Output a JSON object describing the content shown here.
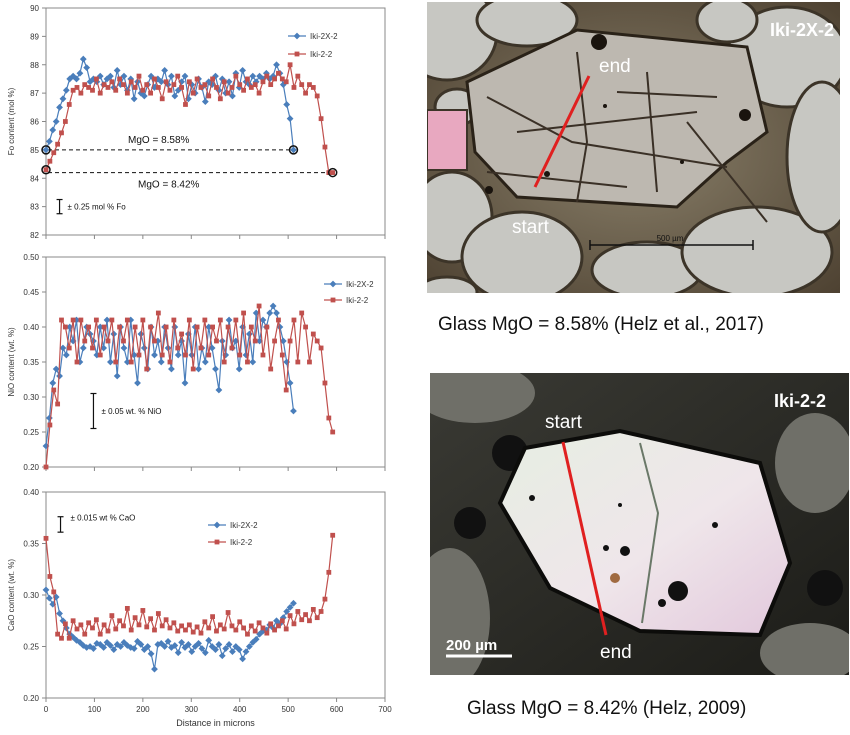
{
  "colors": {
    "series1": "#4a7ebb",
    "series2": "#c0504d",
    "track": "#e02020"
  },
  "chart_data": [
    {
      "type": "line",
      "ylabel": "Fo content (mol %)",
      "xlim": [
        0,
        700
      ],
      "ylim": [
        82,
        90
      ],
      "yticks": [
        82,
        83,
        84,
        85,
        86,
        87,
        88,
        89,
        90
      ],
      "xticks": [
        0,
        100,
        200,
        300,
        400,
        500,
        600,
        700
      ],
      "show_xtick_labels": false,
      "legend": "right",
      "series": [
        {
          "name": "Iki-2X-2",
          "x": [
            0,
            7,
            14,
            21,
            28,
            35,
            42,
            49,
            56,
            63,
            70,
            77,
            84,
            91,
            98,
            105,
            112,
            119,
            126,
            133,
            140,
            147,
            154,
            161,
            168,
            175,
            182,
            189,
            196,
            203,
            210,
            217,
            224,
            231,
            238,
            245,
            252,
            259,
            266,
            273,
            280,
            287,
            294,
            301,
            308,
            315,
            322,
            329,
            336,
            343,
            350,
            357,
            364,
            371,
            378,
            385,
            392,
            399,
            406,
            413,
            420,
            427,
            434,
            441,
            448,
            455,
            462,
            469,
            476,
            483,
            490,
            497,
            504,
            511
          ],
          "y": [
            85.0,
            85.3,
            85.7,
            86.0,
            86.5,
            86.8,
            87.1,
            87.5,
            87.6,
            87.5,
            87.7,
            88.2,
            87.9,
            87.4,
            87.5,
            87.4,
            87.6,
            87.3,
            87.5,
            87.6,
            87.2,
            87.8,
            87.3,
            87.6,
            87.1,
            87.5,
            86.8,
            87.4,
            87.0,
            86.9,
            87.3,
            87.6,
            87.2,
            87.5,
            87.4,
            87.8,
            87.3,
            87.6,
            86.9,
            87.1,
            87.4,
            87.6,
            86.8,
            87.3,
            87.0,
            87.5,
            87.2,
            86.7,
            87.4,
            87.3,
            87.6,
            87.1,
            87.5,
            87.0,
            87.4,
            86.9,
            87.7,
            87.2,
            87.8,
            87.4,
            87.3,
            87.6,
            87.4,
            87.6,
            87.5,
            87.7,
            87.5,
            87.6,
            88.0,
            87.7,
            87.3,
            86.6,
            86.1,
            85.0
          ]
        },
        {
          "name": "Iki-2-2",
          "x": [
            0,
            8,
            16,
            24,
            32,
            40,
            48,
            56,
            64,
            72,
            80,
            88,
            96,
            104,
            112,
            120,
            128,
            136,
            144,
            152,
            160,
            168,
            176,
            184,
            192,
            200,
            208,
            216,
            224,
            232,
            240,
            248,
            256,
            264,
            272,
            280,
            288,
            296,
            304,
            312,
            320,
            328,
            336,
            344,
            352,
            360,
            368,
            376,
            384,
            392,
            400,
            408,
            416,
            424,
            432,
            440,
            448,
            456,
            464,
            472,
            480,
            488,
            496,
            504,
            512,
            520,
            528,
            536,
            544,
            552,
            560,
            568,
            576,
            584,
            592
          ],
          "y": [
            84.3,
            84.6,
            84.9,
            85.2,
            85.6,
            86.0,
            86.6,
            87.1,
            87.2,
            87.0,
            87.3,
            87.2,
            87.1,
            87.5,
            87.0,
            87.3,
            87.2,
            87.4,
            87.1,
            87.5,
            87.3,
            87.0,
            87.4,
            87.2,
            87.6,
            87.1,
            87.3,
            87.0,
            87.5,
            87.2,
            86.8,
            87.4,
            87.1,
            87.3,
            87.6,
            87.2,
            86.6,
            87.4,
            87.0,
            87.5,
            87.2,
            87.3,
            86.9,
            87.5,
            87.2,
            86.8,
            87.4,
            87.0,
            87.2,
            87.6,
            87.3,
            87.1,
            87.5,
            87.2,
            87.3,
            87.0,
            87.4,
            87.6,
            87.3,
            87.5,
            87.7,
            87.5,
            87.4,
            88.0,
            87.2,
            87.6,
            87.3,
            87.0,
            87.3,
            87.2,
            86.9,
            86.1,
            85.1,
            84.2,
            84.2
          ]
        }
      ],
      "annotations": [
        {
          "text": "MgO = 8.58%",
          "value": 85.0
        },
        {
          "text": "MgO = 8.42%",
          "value": 84.2
        }
      ],
      "errorbar": {
        "label": "± 0.25 mol % Fo",
        "x": 28,
        "low": 82.75,
        "high": 83.25
      }
    },
    {
      "type": "line",
      "ylabel": "NiO content (wt. %)",
      "xlim": [
        0,
        700
      ],
      "ylim": [
        0.2,
        0.5
      ],
      "yticks": [
        0.2,
        0.25,
        0.3,
        0.35,
        0.4,
        0.45,
        0.5
      ],
      "xticks": [
        0,
        100,
        200,
        300,
        400,
        500,
        600,
        700
      ],
      "show_xtick_labels": false,
      "legend": "top-right",
      "series": [
        {
          "name": "Iki-2X-2",
          "x": [
            0,
            7,
            14,
            21,
            28,
            35,
            42,
            49,
            56,
            63,
            70,
            77,
            84,
            91,
            98,
            105,
            112,
            119,
            126,
            133,
            140,
            147,
            154,
            161,
            168,
            175,
            182,
            189,
            196,
            203,
            210,
            217,
            224,
            231,
            238,
            245,
            252,
            259,
            266,
            273,
            280,
            287,
            294,
            301,
            308,
            315,
            322,
            329,
            336,
            343,
            350,
            357,
            364,
            371,
            378,
            385,
            392,
            399,
            406,
            413,
            420,
            427,
            434,
            441,
            448,
            455,
            462,
            469,
            476,
            483,
            490,
            497,
            504,
            511
          ],
          "y": [
            0.23,
            0.27,
            0.32,
            0.34,
            0.33,
            0.37,
            0.36,
            0.4,
            0.38,
            0.41,
            0.35,
            0.37,
            0.4,
            0.39,
            0.38,
            0.36,
            0.4,
            0.37,
            0.41,
            0.35,
            0.39,
            0.33,
            0.4,
            0.37,
            0.35,
            0.41,
            0.36,
            0.32,
            0.39,
            0.37,
            0.34,
            0.4,
            0.36,
            0.38,
            0.35,
            0.4,
            0.37,
            0.34,
            0.4,
            0.36,
            0.38,
            0.32,
            0.39,
            0.36,
            0.4,
            0.34,
            0.37,
            0.35,
            0.4,
            0.37,
            0.34,
            0.31,
            0.38,
            0.36,
            0.41,
            0.37,
            0.38,
            0.34,
            0.4,
            0.36,
            0.39,
            0.35,
            0.42,
            0.38,
            0.41,
            0.4,
            0.42,
            0.43,
            0.42,
            0.4,
            0.38,
            0.35,
            0.32,
            0.28
          ]
        },
        {
          "name": "Iki-2-2",
          "x": [
            0,
            8,
            16,
            24,
            32,
            40,
            48,
            56,
            64,
            72,
            80,
            88,
            96,
            104,
            112,
            120,
            128,
            136,
            144,
            152,
            160,
            168,
            176,
            184,
            192,
            200,
            208,
            216,
            224,
            232,
            240,
            248,
            256,
            264,
            272,
            280,
            288,
            296,
            304,
            312,
            320,
            328,
            336,
            344,
            352,
            360,
            368,
            376,
            384,
            392,
            400,
            408,
            416,
            424,
            432,
            440,
            448,
            456,
            464,
            472,
            480,
            488,
            496,
            504,
            512,
            520,
            528,
            536,
            544,
            552,
            560,
            568,
            576,
            584,
            592
          ],
          "y": [
            0.2,
            0.26,
            0.31,
            0.29,
            0.41,
            0.4,
            0.37,
            0.41,
            0.35,
            0.41,
            0.38,
            0.4,
            0.37,
            0.41,
            0.36,
            0.4,
            0.38,
            0.41,
            0.35,
            0.4,
            0.38,
            0.41,
            0.35,
            0.4,
            0.36,
            0.41,
            0.34,
            0.4,
            0.38,
            0.42,
            0.36,
            0.4,
            0.35,
            0.41,
            0.37,
            0.39,
            0.36,
            0.41,
            0.34,
            0.4,
            0.37,
            0.41,
            0.36,
            0.4,
            0.38,
            0.41,
            0.35,
            0.4,
            0.37,
            0.41,
            0.36,
            0.42,
            0.35,
            0.4,
            0.38,
            0.43,
            0.36,
            0.4,
            0.34,
            0.38,
            0.41,
            0.36,
            0.31,
            0.38,
            0.41,
            0.35,
            0.42,
            0.4,
            0.35,
            0.39,
            0.38,
            0.37,
            0.32,
            0.27,
            0.25
          ]
        }
      ],
      "errorbar": {
        "label": "± 0.05 wt. % NiO",
        "x": 98,
        "low": 0.255,
        "high": 0.305
      }
    },
    {
      "type": "line",
      "ylabel": "CaO content (wt. %)",
      "xlabel": "Distance in microns",
      "xlim": [
        0,
        700
      ],
      "ylim": [
        0.2,
        0.4
      ],
      "yticks": [
        0.2,
        0.25,
        0.3,
        0.35,
        0.4
      ],
      "xticks": [
        0,
        100,
        200,
        300,
        400,
        500,
        600,
        700
      ],
      "show_xtick_labels": true,
      "legend": "top",
      "series": [
        {
          "name": "Iki-2X-2",
          "x": [
            0,
            7,
            14,
            21,
            28,
            35,
            42,
            49,
            56,
            63,
            70,
            77,
            84,
            91,
            98,
            105,
            112,
            119,
            126,
            133,
            140,
            147,
            154,
            161,
            168,
            175,
            182,
            189,
            196,
            203,
            210,
            217,
            224,
            231,
            238,
            245,
            252,
            259,
            266,
            273,
            280,
            287,
            294,
            301,
            308,
            315,
            322,
            329,
            336,
            343,
            350,
            357,
            364,
            371,
            378,
            385,
            392,
            399,
            406,
            413,
            420,
            427,
            434,
            441,
            448,
            455,
            462,
            469,
            476,
            483,
            490,
            497,
            504,
            511
          ],
          "y": [
            0.305,
            0.297,
            0.291,
            0.298,
            0.282,
            0.275,
            0.268,
            0.262,
            0.259,
            0.256,
            0.254,
            0.251,
            0.249,
            0.25,
            0.248,
            0.253,
            0.252,
            0.249,
            0.254,
            0.251,
            0.247,
            0.252,
            0.25,
            0.254,
            0.251,
            0.249,
            0.248,
            0.255,
            0.252,
            0.247,
            0.25,
            0.243,
            0.228,
            0.252,
            0.253,
            0.25,
            0.255,
            0.249,
            0.251,
            0.244,
            0.254,
            0.249,
            0.252,
            0.245,
            0.25,
            0.253,
            0.248,
            0.244,
            0.256,
            0.25,
            0.247,
            0.252,
            0.241,
            0.248,
            0.252,
            0.245,
            0.25,
            0.247,
            0.238,
            0.245,
            0.25,
            0.254,
            0.257,
            0.262,
            0.265,
            0.266,
            0.271,
            0.268,
            0.275,
            0.272,
            0.278,
            0.284,
            0.288,
            0.292
          ]
        },
        {
          "name": "Iki-2-2",
          "x": [
            0,
            8,
            16,
            24,
            32,
            40,
            48,
            56,
            64,
            72,
            80,
            88,
            96,
            104,
            112,
            120,
            128,
            136,
            144,
            152,
            160,
            168,
            176,
            184,
            192,
            200,
            208,
            216,
            224,
            232,
            240,
            248,
            256,
            264,
            272,
            280,
            288,
            296,
            304,
            312,
            320,
            328,
            336,
            344,
            352,
            360,
            368,
            376,
            384,
            392,
            400,
            408,
            416,
            424,
            432,
            440,
            448,
            456,
            464,
            472,
            480,
            488,
            496,
            504,
            512,
            520,
            528,
            536,
            544,
            552,
            560,
            568,
            576,
            584,
            592
          ],
          "y": [
            0.355,
            0.318,
            0.303,
            0.262,
            0.258,
            0.272,
            0.258,
            0.275,
            0.267,
            0.271,
            0.262,
            0.273,
            0.268,
            0.276,
            0.262,
            0.271,
            0.265,
            0.28,
            0.267,
            0.275,
            0.27,
            0.287,
            0.266,
            0.278,
            0.271,
            0.285,
            0.269,
            0.277,
            0.266,
            0.282,
            0.27,
            0.276,
            0.268,
            0.273,
            0.265,
            0.27,
            0.266,
            0.271,
            0.264,
            0.269,
            0.263,
            0.274,
            0.268,
            0.279,
            0.265,
            0.271,
            0.267,
            0.283,
            0.27,
            0.266,
            0.274,
            0.268,
            0.262,
            0.27,
            0.265,
            0.273,
            0.268,
            0.263,
            0.272,
            0.266,
            0.27,
            0.275,
            0.267,
            0.28,
            0.272,
            0.284,
            0.276,
            0.281,
            0.275,
            0.286,
            0.278,
            0.284,
            0.296,
            0.322,
            0.358
          ]
        }
      ],
      "errorbar": {
        "label": "± 0.015 wt % CaO",
        "x": 30,
        "low": 0.361,
        "high": 0.376
      }
    }
  ],
  "images": [
    {
      "sample_label": "Iki-2X-2",
      "track_start": "start",
      "track_end": "end",
      "scale_bar": "500 µm",
      "caption": "Glass MgO = 8.58%  (Helz et al., 2017)"
    },
    {
      "sample_label": "Iki-2-2",
      "track_start": "start",
      "track_end": "end",
      "scale_bar": "200 µm",
      "caption": "Glass MgO = 8.42% (Helz, 2009)"
    }
  ]
}
